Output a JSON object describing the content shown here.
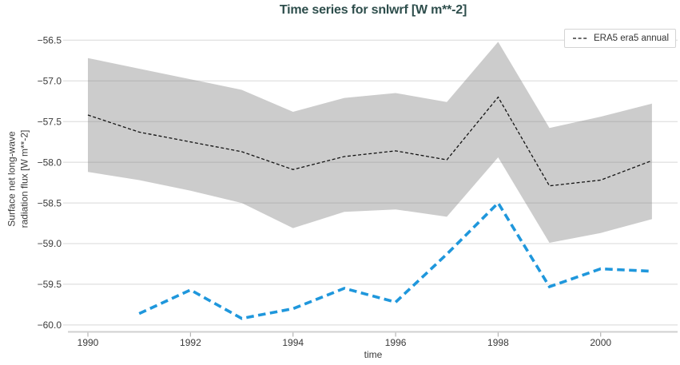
{
  "chart_data": {
    "type": "line",
    "title": "Time series for snlwrf [W m**-2]",
    "xlabel": "time",
    "ylabel_lines": [
      "Surface net long-wave",
      "radiation flux [W m**-2]"
    ],
    "xlim": [
      1989.61,
      2001.5
    ],
    "ylim": [
      -60.08,
      -56.33
    ],
    "grid": true,
    "x_ticks": [
      {
        "v": 1990,
        "label": "1990"
      },
      {
        "v": 1992,
        "label": "1992"
      },
      {
        "v": 1994,
        "label": "1994"
      },
      {
        "v": 1996,
        "label": "1996"
      },
      {
        "v": 1998,
        "label": "1998"
      },
      {
        "v": 2000,
        "label": "2000"
      }
    ],
    "y_ticks": [
      {
        "v": -56.5,
        "label": "−56.5"
      },
      {
        "v": -57.0,
        "label": "−57.0"
      },
      {
        "v": -57.5,
        "label": "−57.5"
      },
      {
        "v": -58.0,
        "label": "−58.0"
      },
      {
        "v": -58.5,
        "label": "−58.5"
      },
      {
        "v": -59.0,
        "label": "−59.0"
      },
      {
        "v": -59.5,
        "label": "−59.5"
      },
      {
        "v": -60.0,
        "label": "−60.0"
      }
    ],
    "legend": {
      "position": "upper-right",
      "entries": [
        {
          "label": "ERA5 era5 annual",
          "style": "dashed",
          "color": "#141414"
        }
      ]
    },
    "colors": {
      "title": "#2e4e4c",
      "text": "#3a3a3a",
      "grid": "#d8d8d8",
      "spine": "#d0d0d0",
      "tick": "#b5b5b5",
      "band_fill": "#797979",
      "band_opacity": 0.38,
      "era5_line": "#141414",
      "blue_line": "#1f97dc"
    },
    "series": [
      {
        "name": "ERA5 era5 annual",
        "style": "dashed-thin",
        "x": [
          1990,
          1991,
          1992,
          1993,
          1994,
          1995,
          1996,
          1997,
          1998,
          1999,
          2000,
          2001
        ],
        "values": [
          -57.42,
          -57.63,
          -57.75,
          -57.87,
          -58.09,
          -57.93,
          -57.86,
          -57.97,
          -57.2,
          -58.29,
          -58.22,
          -57.98
        ],
        "band_upper": [
          -56.72,
          -56.85,
          -56.98,
          -57.11,
          -57.38,
          -57.21,
          -57.15,
          -57.26,
          -56.52,
          -57.58,
          -57.44,
          -57.28
        ],
        "band_lower": [
          -58.12,
          -58.22,
          -58.35,
          -58.5,
          -58.81,
          -58.61,
          -58.58,
          -58.67,
          -57.94,
          -58.99,
          -58.87,
          -58.7
        ]
      },
      {
        "name": "",
        "style": "dashed-thick",
        "x": [
          1991,
          1992,
          1993,
          1994,
          1995,
          1996,
          1997,
          1998,
          1999,
          2000,
          2001
        ],
        "values": [
          -59.86,
          -59.57,
          -59.92,
          -59.8,
          -59.55,
          -59.72,
          -59.13,
          -58.5,
          -59.53,
          -59.31,
          -59.34
        ]
      }
    ]
  }
}
